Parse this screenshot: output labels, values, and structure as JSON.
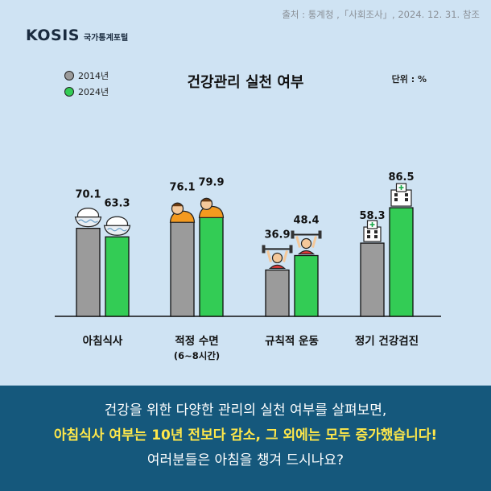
{
  "source": "출처 : 통계청 ,「사회조사」, 2024. 12. 31. 참조",
  "logo": {
    "mark": "KOSIS",
    "sub": "국가통계포털"
  },
  "unit": "단위 : %",
  "colors": {
    "series_2014": "#9b9b9b",
    "series_2024": "#33cc55",
    "caption_bg": "#15587c",
    "highlight": "#ffe84a"
  },
  "icons": [
    "rice-bowl-icon",
    "sleeping-person-icon",
    "weightlifting-person-icon",
    "hospital-building-icon"
  ],
  "chart_data": {
    "type": "bar",
    "title": "건강관리 실천 여부",
    "categories": [
      "아침식사",
      "적정 수면",
      "규칙적 운동",
      "정기 건강검진"
    ],
    "category_notes": [
      "",
      "(6~8시간)",
      "",
      ""
    ],
    "series": [
      {
        "name": "2014년",
        "values": [
          70.1,
          76.1,
          36.9,
          58.3
        ]
      },
      {
        "name": "2024년",
        "values": [
          63.3,
          79.9,
          48.4,
          86.5
        ]
      }
    ],
    "legend": "top-left",
    "grid": false
  },
  "caption": {
    "line1": "건강을 위한 다양한 관리의 실천 여부를 살펴보면,",
    "line2": "아침식사 여부는 10년 전보다 감소, 그 외에는 모두 증가했습니다!",
    "line3": "여러분들은 아침을 챙겨 드시나요?"
  }
}
